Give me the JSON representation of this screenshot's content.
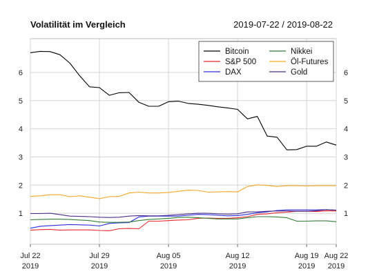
{
  "chart_data": {
    "type": "line",
    "title": "Volatilität im Vergleich",
    "date_range": "2019-07-22 / 2019-08-22",
    "xlabel": "",
    "ylabel": "",
    "ylim": [
      -0.1,
      7.2
    ],
    "xlim": [
      "2019-07-22",
      "2019-08-22"
    ],
    "y_ticks": [
      1,
      2,
      3,
      4,
      5,
      6
    ],
    "x_ticks": [
      {
        "date": "2019-07-22",
        "label": [
          "Jul 22",
          "2019"
        ]
      },
      {
        "date": "2019-07-29",
        "label": [
          "Jul 29",
          "2019"
        ]
      },
      {
        "date": "2019-08-05",
        "label": [
          "Aug 05",
          "2019"
        ]
      },
      {
        "date": "2019-08-12",
        "label": [
          "Aug 12",
          "2019"
        ]
      },
      {
        "date": "2019-08-19",
        "label": [
          "Aug 19",
          "2019"
        ]
      },
      {
        "date": "2019-08-22",
        "label": [
          "Aug 22",
          "2019"
        ]
      }
    ],
    "grid": true,
    "legend_position": "top-right",
    "legend_columns": 2,
    "dates": [
      "2019-07-22",
      "2019-07-23",
      "2019-07-24",
      "2019-07-25",
      "2019-07-26",
      "2019-07-27",
      "2019-07-28",
      "2019-07-29",
      "2019-07-30",
      "2019-07-31",
      "2019-08-01",
      "2019-08-02",
      "2019-08-03",
      "2019-08-04",
      "2019-08-05",
      "2019-08-06",
      "2019-08-07",
      "2019-08-08",
      "2019-08-09",
      "2019-08-10",
      "2019-08-11",
      "2019-08-12",
      "2019-08-13",
      "2019-08-14",
      "2019-08-15",
      "2019-08-16",
      "2019-08-17",
      "2019-08-18",
      "2019-08-19",
      "2019-08-20",
      "2019-08-21",
      "2019-08-22"
    ],
    "series": [
      {
        "name": "Bitcoin",
        "color": "#000000",
        "values": [
          6.7,
          6.75,
          6.74,
          6.63,
          6.33,
          5.88,
          5.49,
          5.46,
          5.19,
          5.28,
          5.29,
          4.94,
          4.8,
          4.8,
          4.96,
          4.98,
          4.9,
          4.87,
          4.83,
          4.78,
          4.74,
          4.69,
          4.35,
          4.44,
          3.74,
          3.7,
          3.25,
          3.26,
          3.38,
          3.38,
          3.53,
          3.42
        ]
      },
      {
        "name": "S&P 500",
        "color": "#e8262c",
        "values": [
          0.4,
          0.42,
          0.43,
          0.4,
          0.41,
          0.41,
          0.41,
          0.39,
          0.38,
          0.45,
          0.46,
          0.45,
          0.72,
          0.72,
          0.74,
          0.76,
          0.77,
          0.82,
          0.83,
          0.82,
          0.82,
          0.84,
          0.88,
          0.96,
          0.98,
          1.02,
          1.04,
          1.07,
          1.07,
          1.06,
          1.09,
          1.08
        ]
      },
      {
        "name": "DAX",
        "color": "#2b2bde",
        "values": [
          0.47,
          0.54,
          0.56,
          0.58,
          0.6,
          0.59,
          0.58,
          0.55,
          0.64,
          0.66,
          0.67,
          0.87,
          0.9,
          0.9,
          0.9,
          0.9,
          0.93,
          0.96,
          0.95,
          0.93,
          0.91,
          0.92,
          0.96,
          1.02,
          1.05,
          1.1,
          1.12,
          1.12,
          1.12,
          1.12,
          1.13,
          1.11
        ]
      },
      {
        "name": "Nikkei",
        "color": "#2e7d32",
        "values": [
          0.77,
          0.78,
          0.79,
          0.79,
          0.78,
          0.76,
          0.74,
          0.69,
          0.68,
          0.68,
          0.69,
          0.74,
          0.78,
          0.8,
          0.82,
          0.85,
          0.86,
          0.84,
          0.82,
          0.8,
          0.8,
          0.8,
          0.84,
          0.88,
          0.88,
          0.87,
          0.84,
          0.72,
          0.72,
          0.73,
          0.73,
          0.7
        ]
      },
      {
        "name": "Öl-Futures",
        "color": "#f5a623",
        "values": [
          1.6,
          1.62,
          1.66,
          1.66,
          1.59,
          1.62,
          1.57,
          1.52,
          1.59,
          1.6,
          1.72,
          1.75,
          1.72,
          1.72,
          1.74,
          1.78,
          1.82,
          1.81,
          1.75,
          1.76,
          1.77,
          1.76,
          1.95,
          2.01,
          1.99,
          1.95,
          1.98,
          1.98,
          1.97,
          1.98,
          1.98,
          1.98
        ]
      },
      {
        "name": "Gold",
        "color": "#4b2c8a",
        "values": [
          0.99,
          0.99,
          1.0,
          0.95,
          0.9,
          0.89,
          0.88,
          0.86,
          0.85,
          0.86,
          0.9,
          0.92,
          0.91,
          0.91,
          0.93,
          0.95,
          0.98,
          1.0,
          1.0,
          0.98,
          0.97,
          0.98,
          1.05,
          1.05,
          1.07,
          1.08,
          1.08,
          1.07,
          1.07,
          1.09,
          1.13,
          1.11
        ]
      }
    ]
  }
}
